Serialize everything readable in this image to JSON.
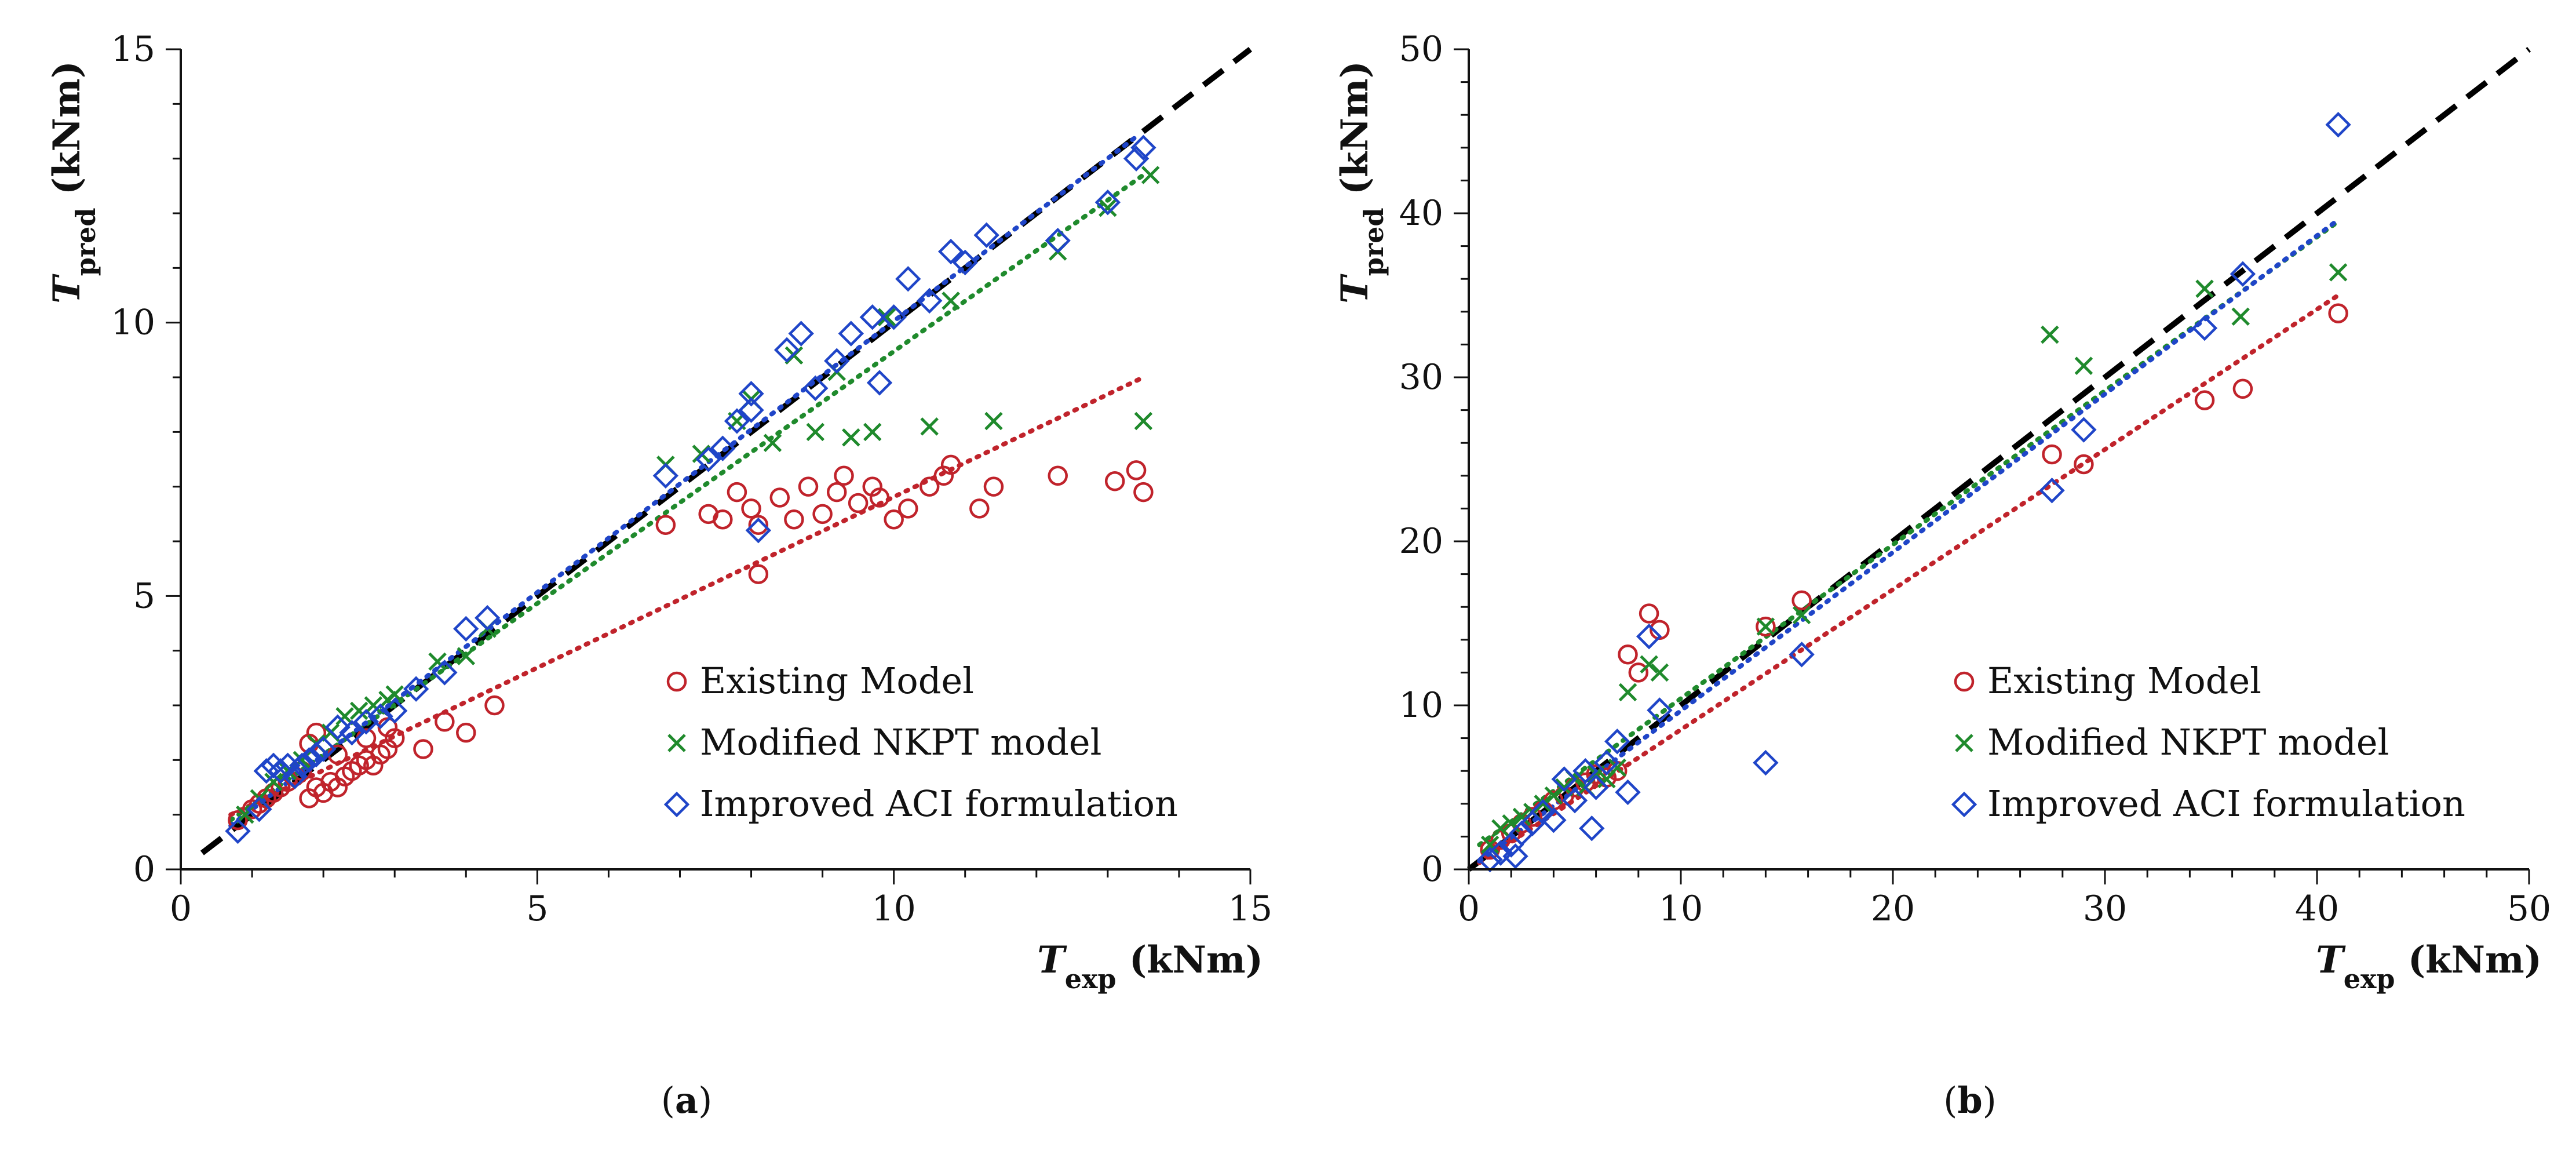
{
  "colors": {
    "existing": "#c0232b",
    "modified": "#1f8a2c",
    "improved": "#1f45c8",
    "identity": "#000000",
    "axis": "#111111"
  },
  "legend": {
    "existing": "Existing Model",
    "modified": "Modified NKPT model",
    "improved": "Improved ACI formulation"
  },
  "chart_data": [
    {
      "type": "scatter",
      "panel_label": "(a)",
      "panel_letter": "a",
      "xlabel": {
        "symbol": "T",
        "sub": "exp",
        "unit": " (kNm)"
      },
      "ylabel": {
        "symbol": "T",
        "sub": "pred",
        "unit": " (kNm)"
      },
      "xlim": [
        0,
        15
      ],
      "ylim": [
        0,
        15
      ],
      "xticks": [
        0,
        5,
        10,
        15
      ],
      "yticks": [
        0,
        5,
        10,
        15
      ],
      "legend_position": "bottom-right",
      "identity_line": [
        [
          0.3,
          0.3
        ],
        [
          15,
          15
        ]
      ],
      "series": [
        {
          "name": "Existing Model",
          "marker": "circle",
          "trend": [
            [
              0.7,
              1.0
            ],
            [
              13.5,
              9.0
            ]
          ],
          "x": [
            0.8,
            1.0,
            1.1,
            1.2,
            1.3,
            1.4,
            1.5,
            1.6,
            1.7,
            1.8,
            1.9,
            2.0,
            2.1,
            2.2,
            2.3,
            2.4,
            2.5,
            2.6,
            2.7,
            2.8,
            2.9,
            3.0,
            1.8,
            1.9,
            2.2,
            2.6,
            2.9,
            3.4,
            3.7,
            4.0,
            4.4,
            6.8,
            7.4,
            7.6,
            7.8,
            8.0,
            8.1,
            8.1,
            8.4,
            8.6,
            8.8,
            9.0,
            9.2,
            9.3,
            9.5,
            9.7,
            9.8,
            10.0,
            10.2,
            10.5,
            10.7,
            10.8,
            11.2,
            11.4,
            12.3,
            13.1,
            13.4,
            13.5
          ],
          "y": [
            0.9,
            1.1,
            1.2,
            1.3,
            1.4,
            1.5,
            1.6,
            1.7,
            1.8,
            1.3,
            1.5,
            1.4,
            1.6,
            1.5,
            1.7,
            1.8,
            1.9,
            2.0,
            1.9,
            2.1,
            2.2,
            2.4,
            2.3,
            2.5,
            2.1,
            2.4,
            2.6,
            2.2,
            2.7,
            2.5,
            3.0,
            6.3,
            6.5,
            6.4,
            6.9,
            6.6,
            6.3,
            5.4,
            6.8,
            6.4,
            7.0,
            6.5,
            6.9,
            7.2,
            6.7,
            7.0,
            6.8,
            6.4,
            6.6,
            7.0,
            7.2,
            7.4,
            6.6,
            7.0,
            7.2,
            7.1,
            7.3,
            6.9
          ]
        },
        {
          "name": "Modified NKPT model",
          "marker": "x",
          "trend": [
            [
              0.7,
              0.9
            ],
            [
              13.5,
              12.7
            ]
          ],
          "x": [
            0.9,
            1.1,
            1.3,
            1.5,
            1.7,
            1.9,
            2.1,
            2.3,
            2.5,
            2.7,
            2.9,
            3.0,
            3.6,
            4.0,
            4.3,
            6.8,
            7.3,
            7.8,
            8.0,
            8.3,
            8.6,
            8.9,
            9.2,
            9.4,
            9.7,
            9.9,
            10.5,
            10.8,
            11.4,
            12.3,
            13.0,
            13.5,
            13.6
          ],
          "y": [
            1.0,
            1.3,
            1.6,
            1.8,
            2.0,
            2.3,
            2.5,
            2.8,
            2.9,
            3.0,
            3.1,
            3.2,
            3.8,
            3.9,
            4.4,
            7.4,
            7.6,
            8.2,
            8.6,
            7.8,
            9.4,
            8.0,
            9.1,
            7.9,
            8.0,
            10.1,
            8.1,
            10.4,
            8.2,
            11.3,
            12.1,
            8.2,
            12.7
          ]
        },
        {
          "name": "Improved ACI formulation",
          "marker": "diamond",
          "trend": [
            [
              0.7,
              0.8
            ],
            [
              13.4,
              13.4
            ]
          ],
          "x": [
            0.8,
            1.1,
            1.2,
            1.3,
            1.4,
            1.5,
            1.6,
            1.7,
            1.8,
            1.9,
            2.0,
            2.2,
            2.4,
            2.6,
            2.8,
            3.0,
            3.3,
            3.7,
            4.0,
            4.3,
            6.8,
            7.4,
            7.6,
            7.8,
            8.0,
            8.0,
            8.1,
            8.5,
            8.7,
            8.9,
            9.2,
            9.4,
            9.7,
            9.8,
            10.0,
            10.2,
            10.5,
            10.8,
            11.0,
            11.3,
            12.3,
            13.0,
            13.4,
            13.5
          ],
          "y": [
            0.7,
            1.1,
            1.8,
            1.9,
            1.8,
            1.9,
            1.7,
            1.9,
            2.0,
            2.1,
            2.2,
            2.6,
            2.5,
            2.7,
            2.8,
            2.9,
            3.3,
            3.6,
            4.4,
            4.6,
            7.2,
            7.5,
            7.7,
            8.2,
            8.7,
            8.4,
            6.2,
            9.5,
            9.8,
            8.8,
            9.3,
            9.8,
            10.1,
            8.9,
            10.1,
            10.8,
            10.4,
            11.3,
            11.1,
            11.6,
            11.5,
            12.2,
            13.0,
            13.2
          ]
        }
      ]
    },
    {
      "type": "scatter",
      "panel_label": "(b)",
      "panel_letter": "b",
      "xlabel": {
        "symbol": "T",
        "sub": "exp",
        "unit": " (kNm)"
      },
      "ylabel": {
        "symbol": "T",
        "sub": "pred",
        "unit": " (kNm)"
      },
      "xlim": [
        0,
        50
      ],
      "ylim": [
        0,
        50
      ],
      "xticks": [
        0,
        10,
        20,
        30,
        40,
        50
      ],
      "yticks": [
        0,
        10,
        20,
        30,
        40,
        50
      ],
      "legend_position": "bottom-right",
      "identity_line": [
        [
          0,
          0
        ],
        [
          50,
          50
        ]
      ],
      "series": [
        {
          "name": "Existing Model",
          "marker": "circle",
          "trend": [
            [
              0.5,
              0.4
            ],
            [
              41.0,
              35.0
            ]
          ],
          "x": [
            1.0,
            1.5,
            2.0,
            2.5,
            3.0,
            3.5,
            4.0,
            4.5,
            5.0,
            5.5,
            6.0,
            6.5,
            7.0,
            7.5,
            8.0,
            8.5,
            9.0,
            14.0,
            15.7,
            27.5,
            29.0,
            34.7,
            36.5,
            41.0
          ],
          "y": [
            1.2,
            1.8,
            2.2,
            2.8,
            3.2,
            3.6,
            4.2,
            4.5,
            5.0,
            5.3,
            5.8,
            5.6,
            6.0,
            13.1,
            12.0,
            15.6,
            14.6,
            14.8,
            16.4,
            25.3,
            24.7,
            28.6,
            29.3,
            33.9
          ]
        },
        {
          "name": "Modified NKPT model",
          "marker": "x",
          "trend": [
            [
              0.5,
              1.5
            ],
            [
              41.0,
              39.5
            ]
          ],
          "x": [
            1.0,
            1.5,
            2.0,
            2.5,
            3.0,
            3.5,
            4.0,
            4.5,
            5.0,
            5.5,
            6.0,
            6.5,
            7.0,
            7.5,
            8.5,
            9.0,
            14.0,
            15.7,
            27.4,
            29.0,
            34.7,
            36.4,
            41.0
          ],
          "y": [
            1.5,
            2.5,
            2.8,
            3.2,
            3.5,
            4.0,
            4.5,
            5.0,
            5.5,
            5.0,
            5.8,
            5.5,
            6.2,
            10.8,
            12.5,
            12.0,
            14.8,
            15.5,
            32.6,
            30.7,
            35.4,
            33.7,
            36.4
          ]
        },
        {
          "name": "Improved ACI formulation",
          "marker": "diamond",
          "trend": [
            [
              0.5,
              0.5
            ],
            [
              41.0,
              39.6
            ]
          ],
          "x": [
            1.0,
            1.5,
            2.0,
            2.2,
            2.5,
            3.0,
            3.5,
            4.0,
            4.5,
            5.0,
            5.5,
            5.8,
            6.0,
            6.5,
            7.0,
            7.5,
            8.5,
            9.0,
            14.0,
            15.7,
            27.5,
            29.0,
            34.7,
            36.5,
            41.0
          ],
          "y": [
            0.6,
            1.0,
            1.5,
            0.8,
            2.2,
            2.8,
            3.5,
            3.0,
            5.5,
            4.2,
            6.0,
            2.5,
            5.0,
            6.5,
            7.8,
            4.7,
            14.2,
            9.7,
            6.5,
            13.1,
            23.1,
            26.8,
            33.0,
            36.3,
            45.4
          ]
        }
      ]
    }
  ]
}
